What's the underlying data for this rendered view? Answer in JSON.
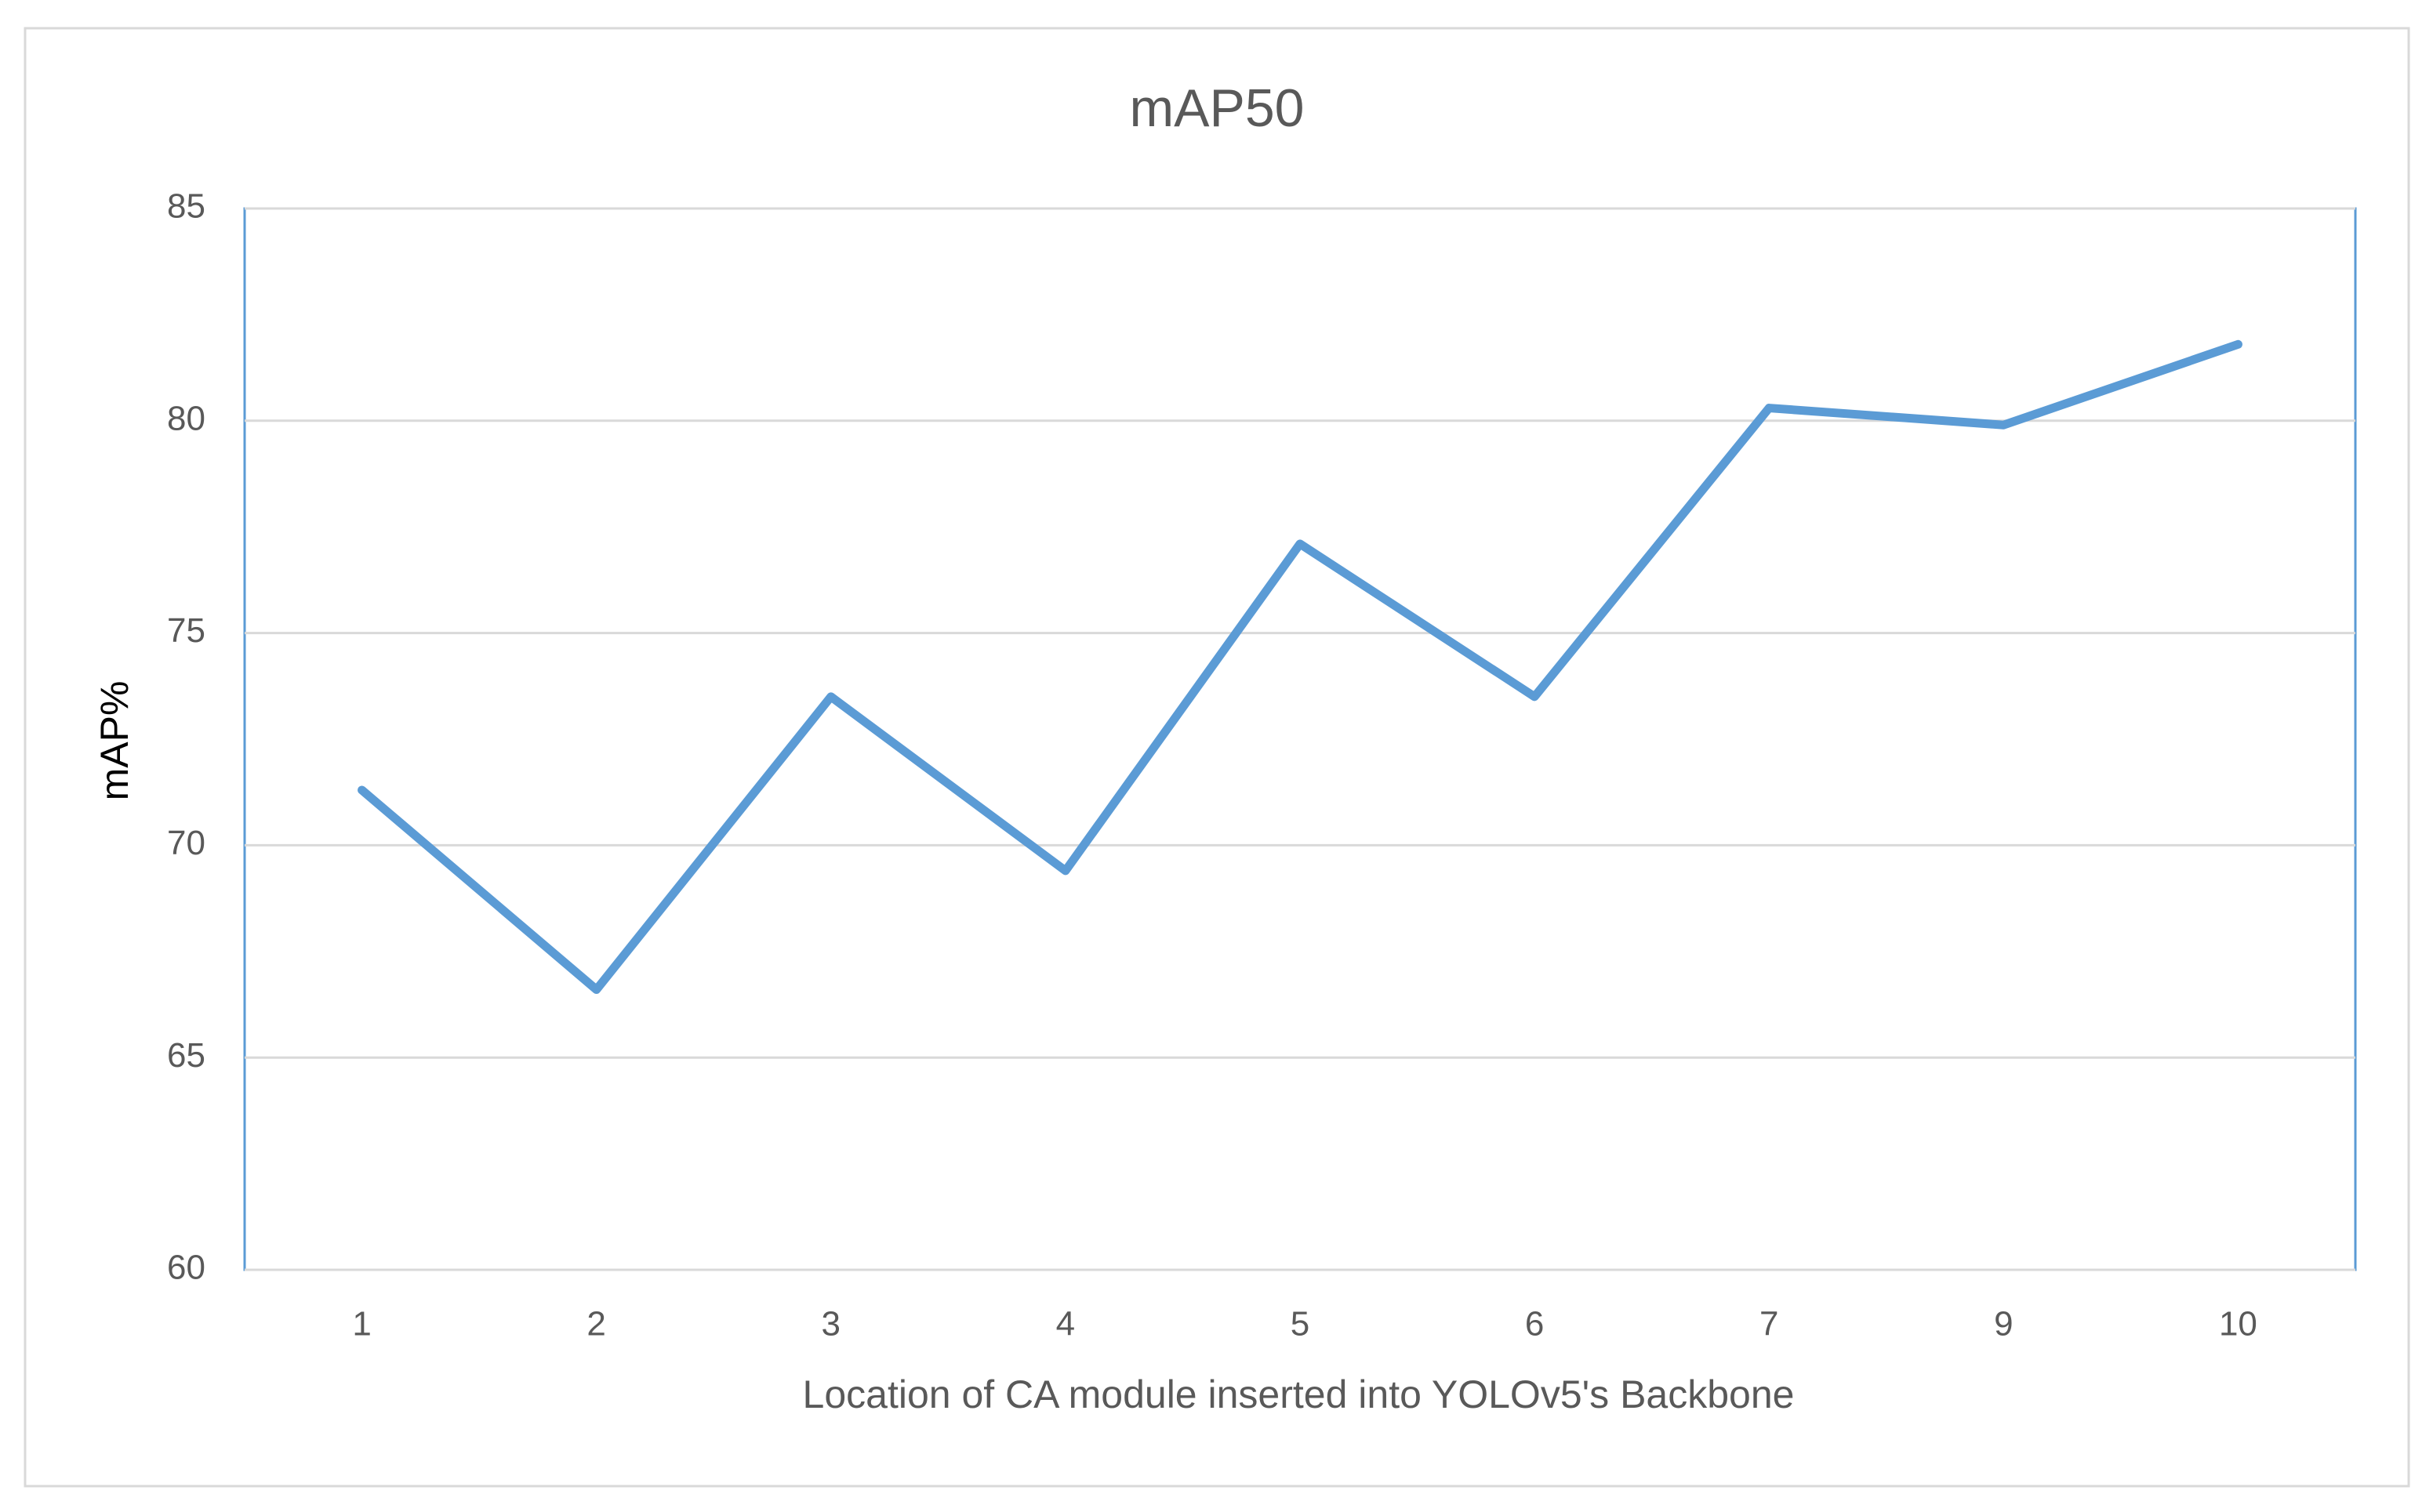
{
  "chart_data": {
    "type": "line",
    "title": "mAP50",
    "x_label": "Location of CA module inserted into YOLOv5's Backbone",
    "y_label": "mAP%",
    "categories": [
      "1",
      "2",
      "3",
      "4",
      "5",
      "6",
      "7",
      "9",
      "10"
    ],
    "values": [
      71.3,
      66.6,
      73.5,
      69.4,
      77.1,
      73.5,
      80.3,
      79.9,
      81.8
    ],
    "color": "#5b9bd5",
    "ylim": [
      60,
      85
    ],
    "yticks": [
      60,
      65,
      70,
      75,
      80,
      85
    ],
    "grid": true
  }
}
